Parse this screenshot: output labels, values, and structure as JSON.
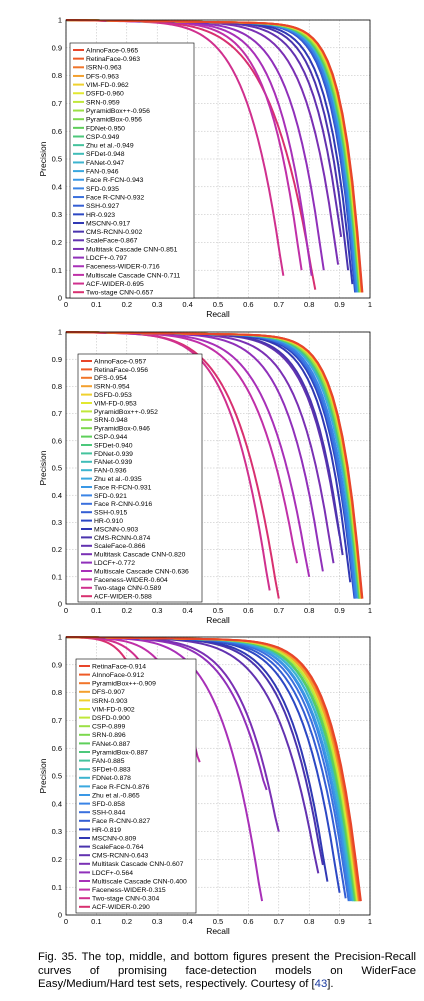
{
  "caption": {
    "text": "Fig. 35. The top, middle, and bottom figures present the Precision-Recall curves of promising face-detection models on WiderFace Easy/Medium/Hard test sets, respectively. Courtesy of [",
    "ref": "43",
    "tail": "]."
  },
  "chart_data": [
    {
      "type": "line",
      "xlabel": "Recall",
      "ylabel": "Precision",
      "xlim": [
        0,
        1
      ],
      "ylim": [
        0,
        1
      ],
      "xticks": [
        "0",
        "0.1",
        "0.2",
        "0.3",
        "0.4",
        "0.5",
        "0.6",
        "0.7",
        "0.8",
        "0.9",
        "1"
      ],
      "yticks": [
        "0",
        "0.1",
        "0.2",
        "0.3",
        "0.4",
        "0.5",
        "0.6",
        "0.7",
        "0.8",
        "0.9",
        "1"
      ],
      "grid": true,
      "legend_position": "left",
      "series": [
        {
          "name": "AInnoFace-0.965",
          "color": "#e8452a",
          "end_recall": 0.975,
          "min_precision": 0.02,
          "shape": 3.5
        },
        {
          "name": "RetinaFace-0.963",
          "color": "#ee5a26",
          "end_recall": 0.974,
          "min_precision": 0.02,
          "shape": 3.5
        },
        {
          "name": "ISRN-0.963",
          "color": "#f1752a",
          "end_recall": 0.973,
          "min_precision": 0.02,
          "shape": 3.5
        },
        {
          "name": "DFS-0.963",
          "color": "#f3a02e",
          "end_recall": 0.973,
          "min_precision": 0.02,
          "shape": 3.5
        },
        {
          "name": "VIM-FD-0.962",
          "color": "#f0d12d",
          "end_recall": 0.972,
          "min_precision": 0.02,
          "shape": 3.4
        },
        {
          "name": "DSFD-0.960",
          "color": "#e2e830",
          "end_recall": 0.971,
          "min_precision": 0.02,
          "shape": 3.4
        },
        {
          "name": "SRN-0.959",
          "color": "#c0e83a",
          "end_recall": 0.97,
          "min_precision": 0.02,
          "shape": 3.4
        },
        {
          "name": "PyramidBox++-0.956",
          "color": "#9be045",
          "end_recall": 0.969,
          "min_precision": 0.02,
          "shape": 3.3
        },
        {
          "name": "PyramidBox-0.956",
          "color": "#7cd84d",
          "end_recall": 0.968,
          "min_precision": 0.02,
          "shape": 3.3
        },
        {
          "name": "FDNet-0.950",
          "color": "#5ecf5a",
          "end_recall": 0.966,
          "min_precision": 0.02,
          "shape": 3.2
        },
        {
          "name": "CSP-0.949",
          "color": "#4cc87b",
          "end_recall": 0.965,
          "min_precision": 0.02,
          "shape": 3.2
        },
        {
          "name": "Zhu et al.-0.949",
          "color": "#44c39c",
          "end_recall": 0.965,
          "min_precision": 0.02,
          "shape": 3.2
        },
        {
          "name": "SFDet-0.948",
          "color": "#3fbdb8",
          "end_recall": 0.964,
          "min_precision": 0.02,
          "shape": 3.2
        },
        {
          "name": "FANet-0.947",
          "color": "#3cb4cf",
          "end_recall": 0.963,
          "min_precision": 0.02,
          "shape": 3.1
        },
        {
          "name": "FAN-0.946",
          "color": "#3aa8df",
          "end_recall": 0.962,
          "min_precision": 0.02,
          "shape": 3.1
        },
        {
          "name": "Face R-FCN-0.943",
          "color": "#3a98e6",
          "end_recall": 0.961,
          "min_precision": 0.02,
          "shape": 3.1
        },
        {
          "name": "SFD-0.935",
          "color": "#3a84e6",
          "end_recall": 0.957,
          "min_precision": 0.02,
          "shape": 3.0
        },
        {
          "name": "Face R-CNN-0.932",
          "color": "#3a70de",
          "end_recall": 0.955,
          "min_precision": 0.02,
          "shape": 3.0
        },
        {
          "name": "SSH-0.927",
          "color": "#345ed4",
          "end_recall": 0.953,
          "min_precision": 0.02,
          "shape": 2.9
        },
        {
          "name": "HR-0.923",
          "color": "#2c48c4",
          "end_recall": 0.951,
          "min_precision": 0.02,
          "shape": 2.9
        },
        {
          "name": "MSCNN-0.917",
          "color": "#3038b4",
          "end_recall": 0.942,
          "min_precision": 0.05,
          "shape": 2.6
        },
        {
          "name": "CMS-RCNN-0.902",
          "color": "#4a34ae",
          "end_recall": 0.928,
          "min_precision": 0.1,
          "shape": 2.4
        },
        {
          "name": "ScaleFace-0.867",
          "color": "#6232b0",
          "end_recall": 0.905,
          "min_precision": 0.22,
          "shape": 2.1
        },
        {
          "name": "Multitask Cascade CNN-0.851",
          "color": "#7a30b4",
          "end_recall": 0.895,
          "min_precision": 0.12,
          "shape": 1.8
        },
        {
          "name": "LDCF+-0.797",
          "color": "#9030ba",
          "end_recall": 0.848,
          "min_precision": 0.1,
          "shape": 1.6
        },
        {
          "name": "Faceness-WIDER-0.716",
          "color": "#a830b8",
          "end_recall": 0.808,
          "min_precision": 0.08,
          "shape": 1.5
        },
        {
          "name": "Multiscale Cascade CNN-0.711",
          "color": "#c030a8",
          "end_recall": 0.775,
          "min_precision": 0.1,
          "shape": 1.4
        },
        {
          "name": "ACF-WIDER-0.695",
          "color": "#d0308e",
          "end_recall": 0.715,
          "min_precision": 0.08,
          "shape": 1.1
        },
        {
          "name": "Two-stage CNN-0.657",
          "color": "#d83070",
          "end_recall": 0.82,
          "min_precision": 0.03,
          "shape": 1.0
        }
      ]
    },
    {
      "type": "line",
      "xlabel": "Recall",
      "ylabel": "Precision",
      "xlim": [
        0,
        1
      ],
      "ylim": [
        0,
        1
      ],
      "xticks": [
        "0",
        "0.1",
        "0.2",
        "0.3",
        "0.4",
        "0.5",
        "0.6",
        "0.7",
        "0.8",
        "0.9",
        "1"
      ],
      "yticks": [
        "0",
        "0.1",
        "0.2",
        "0.3",
        "0.4",
        "0.5",
        "0.6",
        "0.7",
        "0.8",
        "0.9",
        "1"
      ],
      "grid": true,
      "legend_position": "left",
      "series": [
        {
          "name": "AInnoFace-0.957",
          "color": "#e8452a",
          "end_recall": 0.975,
          "min_precision": 0.02,
          "shape": 3.0
        },
        {
          "name": "RetinaFace-0.956",
          "color": "#ee5a26",
          "end_recall": 0.974,
          "min_precision": 0.02,
          "shape": 3.0
        },
        {
          "name": "DFS-0.954",
          "color": "#f1752a",
          "end_recall": 0.973,
          "min_precision": 0.02,
          "shape": 3.0
        },
        {
          "name": "ISRN-0.954",
          "color": "#f3a02e",
          "end_recall": 0.973,
          "min_precision": 0.02,
          "shape": 3.0
        },
        {
          "name": "DSFD-0.953",
          "color": "#f0d12d",
          "end_recall": 0.972,
          "min_precision": 0.02,
          "shape": 2.9
        },
        {
          "name": "VIM-FD-0.953",
          "color": "#e2e830",
          "end_recall": 0.972,
          "min_precision": 0.02,
          "shape": 2.9
        },
        {
          "name": "PyramidBox++-0.952",
          "color": "#c0e83a",
          "end_recall": 0.971,
          "min_precision": 0.02,
          "shape": 2.9
        },
        {
          "name": "SRN-0.948",
          "color": "#9be045",
          "end_recall": 0.969,
          "min_precision": 0.02,
          "shape": 2.8
        },
        {
          "name": "PyramidBox-0.946",
          "color": "#7cd84d",
          "end_recall": 0.968,
          "min_precision": 0.02,
          "shape": 2.8
        },
        {
          "name": "CSP-0.944",
          "color": "#5ecf5a",
          "end_recall": 0.967,
          "min_precision": 0.02,
          "shape": 2.8
        },
        {
          "name": "SFDet-0.940",
          "color": "#4cc87b",
          "end_recall": 0.965,
          "min_precision": 0.02,
          "shape": 2.7
        },
        {
          "name": "FDNet-0.939",
          "color": "#44c39c",
          "end_recall": 0.965,
          "min_precision": 0.02,
          "shape": 2.7
        },
        {
          "name": "FANet-0.939",
          "color": "#3fbdb8",
          "end_recall": 0.964,
          "min_precision": 0.02,
          "shape": 2.7
        },
        {
          "name": "FAN-0.936",
          "color": "#3cb4cf",
          "end_recall": 0.963,
          "min_precision": 0.02,
          "shape": 2.6
        },
        {
          "name": "Zhu et al.-0.935",
          "color": "#3aa8df",
          "end_recall": 0.962,
          "min_precision": 0.02,
          "shape": 2.6
        },
        {
          "name": "Face R-FCN-0.931",
          "color": "#3a98e6",
          "end_recall": 0.96,
          "min_precision": 0.02,
          "shape": 2.6
        },
        {
          "name": "SFD-0.921",
          "color": "#3a84e6",
          "end_recall": 0.955,
          "min_precision": 0.02,
          "shape": 2.5
        },
        {
          "name": "Face R-CNN-0.916",
          "color": "#3a70de",
          "end_recall": 0.952,
          "min_precision": 0.02,
          "shape": 2.4
        },
        {
          "name": "SSH-0.915",
          "color": "#345ed4",
          "end_recall": 0.951,
          "min_precision": 0.02,
          "shape": 2.4
        },
        {
          "name": "HR-0.910",
          "color": "#2c48c4",
          "end_recall": 0.949,
          "min_precision": 0.02,
          "shape": 2.3
        },
        {
          "name": "MSCNN-0.903",
          "color": "#3038b4",
          "end_recall": 0.935,
          "min_precision": 0.08,
          "shape": 2.2
        },
        {
          "name": "CMS-RCNN-0.874",
          "color": "#4a34ae",
          "end_recall": 0.91,
          "min_precision": 0.18,
          "shape": 2.0
        },
        {
          "name": "ScaleFace-0.866",
          "color": "#6232b0",
          "end_recall": 0.9,
          "min_precision": 0.25,
          "shape": 1.9
        },
        {
          "name": "Multitask Cascade CNN-0.820",
          "color": "#7a30b4",
          "end_recall": 0.88,
          "min_precision": 0.15,
          "shape": 1.6
        },
        {
          "name": "LDCF+-0.772",
          "color": "#9030ba",
          "end_recall": 0.845,
          "min_precision": 0.12,
          "shape": 1.4
        },
        {
          "name": "Multiscale Cascade CNN-0.636",
          "color": "#a830b8",
          "end_recall": 0.8,
          "min_precision": 0.1,
          "shape": 1.1
        },
        {
          "name": "Faceness-WIDER-0.604",
          "color": "#c030a8",
          "end_recall": 0.76,
          "min_precision": 0.15,
          "shape": 1.0
        },
        {
          "name": "Two-stage CNN-0.589",
          "color": "#d0308e",
          "end_recall": 0.67,
          "min_precision": 0.05,
          "shape": 0.9
        },
        {
          "name": "ACF-WIDER-0.588",
          "color": "#d83070",
          "end_recall": 0.7,
          "min_precision": 0.02,
          "shape": 0.85
        }
      ]
    },
    {
      "type": "line",
      "xlabel": "Recall",
      "ylabel": "Precision",
      "xlim": [
        0,
        1
      ],
      "ylim": [
        0,
        1
      ],
      "xticks": [
        "0",
        "0.1",
        "0.2",
        "0.3",
        "0.4",
        "0.5",
        "0.6",
        "0.7",
        "0.8",
        "0.9",
        "1"
      ],
      "yticks": [
        "0",
        "0.1",
        "0.2",
        "0.3",
        "0.4",
        "0.5",
        "0.6",
        "0.7",
        "0.8",
        "0.9",
        "1"
      ],
      "grid": true,
      "legend_position": "left",
      "series": [
        {
          "name": "RetinaFace-0.914",
          "color": "#e8452a",
          "end_recall": 0.97,
          "min_precision": 0.05,
          "shape": 2.2
        },
        {
          "name": "AInnoFace-0.912",
          "color": "#ee5a26",
          "end_recall": 0.968,
          "min_precision": 0.05,
          "shape": 2.2
        },
        {
          "name": "PyramidBox++-0.909",
          "color": "#f1752a",
          "end_recall": 0.965,
          "min_precision": 0.05,
          "shape": 2.2
        },
        {
          "name": "DFS-0.907",
          "color": "#f3a02e",
          "end_recall": 0.963,
          "min_precision": 0.05,
          "shape": 2.1
        },
        {
          "name": "ISRN-0.903",
          "color": "#f0d12d",
          "end_recall": 0.962,
          "min_precision": 0.05,
          "shape": 2.1
        },
        {
          "name": "VIM-FD-0.902",
          "color": "#e2e830",
          "end_recall": 0.96,
          "min_precision": 0.05,
          "shape": 2.1
        },
        {
          "name": "DSFD-0.900",
          "color": "#c0e83a",
          "end_recall": 0.958,
          "min_precision": 0.05,
          "shape": 2.0
        },
        {
          "name": "CSP-0.899",
          "color": "#9be045",
          "end_recall": 0.957,
          "min_precision": 0.05,
          "shape": 2.0
        },
        {
          "name": "SRN-0.896",
          "color": "#7cd84d",
          "end_recall": 0.955,
          "min_precision": 0.05,
          "shape": 2.0
        },
        {
          "name": "FANet-0.887",
          "color": "#5ecf5a",
          "end_recall": 0.952,
          "min_precision": 0.05,
          "shape": 1.9
        },
        {
          "name": "PyramidBox-0.887",
          "color": "#4cc87b",
          "end_recall": 0.952,
          "min_precision": 0.05,
          "shape": 1.9
        },
        {
          "name": "FAN-0.885",
          "color": "#44c39c",
          "end_recall": 0.95,
          "min_precision": 0.05,
          "shape": 1.9
        },
        {
          "name": "SFDet-0.883",
          "color": "#3fbdb8",
          "end_recall": 0.948,
          "min_precision": 0.05,
          "shape": 1.9
        },
        {
          "name": "FDNet-0.878",
          "color": "#3cb4cf",
          "end_recall": 0.945,
          "min_precision": 0.05,
          "shape": 1.8
        },
        {
          "name": "Face R-FCN-0.876",
          "color": "#3aa8df",
          "end_recall": 0.944,
          "min_precision": 0.05,
          "shape": 1.8
        },
        {
          "name": "Zhu et al.-0.865",
          "color": "#3a98e6",
          "end_recall": 0.94,
          "min_precision": 0.05,
          "shape": 1.7
        },
        {
          "name": "SFD-0.858",
          "color": "#3a84e6",
          "end_recall": 0.935,
          "min_precision": 0.05,
          "shape": 1.7
        },
        {
          "name": "SSH-0.844",
          "color": "#3a70de",
          "end_recall": 0.93,
          "min_precision": 0.05,
          "shape": 1.6
        },
        {
          "name": "Face R-CNN-0.827",
          "color": "#345ed4",
          "end_recall": 0.92,
          "min_precision": 0.06,
          "shape": 1.5
        },
        {
          "name": "HR-0.819",
          "color": "#2c48c4",
          "end_recall": 0.9,
          "min_precision": 0.08,
          "shape": 1.45
        },
        {
          "name": "MSCNN-0.809",
          "color": "#3038b4",
          "end_recall": 0.86,
          "min_precision": 0.12,
          "shape": 1.4
        },
        {
          "name": "ScaleFace-0.764",
          "color": "#4a34ae",
          "end_recall": 0.845,
          "min_precision": 0.18,
          "shape": 1.3
        },
        {
          "name": "CMS-RCNN-0.643",
          "color": "#6232b0",
          "end_recall": 0.83,
          "min_precision": 0.15,
          "shape": 1.1
        },
        {
          "name": "Multitask Cascade CNN-0.607",
          "color": "#7a30b4",
          "end_recall": 0.7,
          "min_precision": 0.3,
          "shape": 1.0
        },
        {
          "name": "LDCF+-0.564",
          "color": "#9030ba",
          "end_recall": 0.66,
          "min_precision": 0.45,
          "shape": 0.9
        },
        {
          "name": "Multiscale Cascade CNN-0.400",
          "color": "#a830b8",
          "end_recall": 0.645,
          "min_precision": 0.05,
          "shape": 0.8
        },
        {
          "name": "Faceness-WIDER-0.315",
          "color": "#c030a8",
          "end_recall": 0.44,
          "min_precision": 0.55,
          "shape": 0.7
        },
        {
          "name": "Two-stage CNN-0.304",
          "color": "#d0308e",
          "end_recall": 0.4,
          "min_precision": 0.3,
          "shape": 0.6
        },
        {
          "name": "ACF-WIDER-0.290",
          "color": "#d83070",
          "end_recall": 0.355,
          "min_precision": 0.02,
          "shape": 0.6
        }
      ]
    }
  ]
}
